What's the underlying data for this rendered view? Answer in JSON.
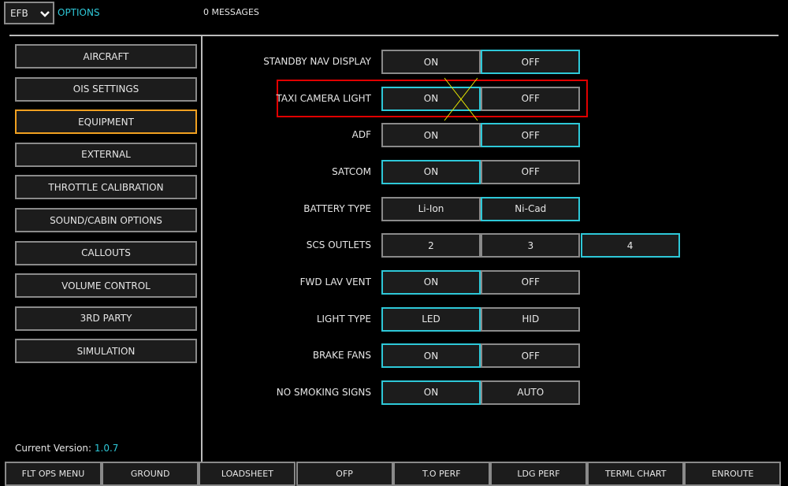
{
  "header": {
    "dropdown": "EFB",
    "title": "OPTIONS",
    "messages": "0 MESSAGES"
  },
  "menu": {
    "items": [
      "AIRCRAFT",
      "OIS SETTINGS",
      "EQUIPMENT",
      "EXTERNAL",
      "THROTTLE CALIBRATION",
      "SOUND/CABIN OPTIONS",
      "CALLOUTS",
      "VOLUME CONTROL",
      "3RD PARTY",
      "SIMULATION"
    ],
    "active": 2
  },
  "version": {
    "label": "Current Version:",
    "value": "1.0.7"
  },
  "options": [
    {
      "label": "STANDBY NAV DISPLAY",
      "choices": [
        "ON",
        "OFF"
      ],
      "selected": 1
    },
    {
      "label": "TAXI CAMERA LIGHT",
      "choices": [
        "ON",
        "OFF"
      ],
      "selected": 0
    },
    {
      "label": "ADF",
      "choices": [
        "ON",
        "OFF"
      ],
      "selected": 1
    },
    {
      "label": "SATCOM",
      "choices": [
        "ON",
        "OFF"
      ],
      "selected": 0
    },
    {
      "label": "BATTERY TYPE",
      "choices": [
        "Li-Ion",
        "Ni-Cad"
      ],
      "selected": 1
    },
    {
      "label": "SCS OUTLETS",
      "choices": [
        "2",
        "3",
        "4"
      ],
      "selected": 2
    },
    {
      "label": "FWD LAV VENT",
      "choices": [
        "ON",
        "OFF"
      ],
      "selected": 0
    },
    {
      "label": "LIGHT TYPE",
      "choices": [
        "LED",
        "HID"
      ],
      "selected": 0
    },
    {
      "label": "BRAKE FANS",
      "choices": [
        "ON",
        "OFF"
      ],
      "selected": 0
    },
    {
      "label": "NO SMOKING SIGNS",
      "choices": [
        "ON",
        "AUTO"
      ],
      "selected": 0
    }
  ],
  "footer": {
    "tabs": [
      "FLT OPS MENU",
      "GROUND",
      "LOADSHEET",
      "OFP",
      "T.O PERF",
      "LDG PERF",
      "TERML CHART",
      "ENROUTE"
    ]
  }
}
